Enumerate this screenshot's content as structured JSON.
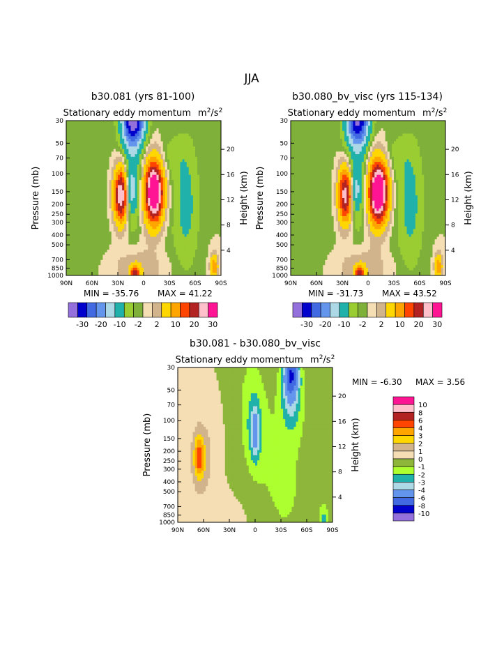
{
  "page_title": "JJA",
  "colors": {
    "jja_palette": [
      "#9370db",
      "#0000cd",
      "#4169e1",
      "#6495ed",
      "#add8e6",
      "#20b2aa",
      "#9acd32",
      "#7fb03a",
      "#f5deb3",
      "#d2b48c",
      "#ffd700",
      "#ffa500",
      "#ff4500",
      "#b22222",
      "#ffc0cb",
      "#ff1493"
    ],
    "diff_palette": [
      "#9370db",
      "#0000cd",
      "#4169e1",
      "#6495ed",
      "#add8e6",
      "#20b2aa",
      "#adff2f",
      "#8db63a",
      "#f5deb3",
      "#d2b48c",
      "#ffd700",
      "#ffa500",
      "#ff4500",
      "#b22222",
      "#ffc0cb",
      "#ff1493"
    ]
  },
  "chart_data": [
    {
      "type": "heatmap",
      "id": "p1",
      "title": "b30.081 (yrs 81-100)",
      "subtitle": "Stationary eddy momentum",
      "units": "m²/s²",
      "xlabel": "",
      "ylabel": "Pressure (mb)",
      "ylabel_right": "Height (km)",
      "x_ticks": [
        "90N",
        "60N",
        "30N",
        "0",
        "30S",
        "60S",
        "90S"
      ],
      "y_ticks": [
        30,
        50,
        70,
        100,
        150,
        200,
        250,
        300,
        400,
        500,
        700,
        850,
        1000
      ],
      "height_ticks": [
        20,
        16,
        12,
        8,
        4
      ],
      "ylim": [
        30,
        1000
      ],
      "min_label": "MIN = -35.76",
      "max_label": "MAX = 41.22",
      "min": -35.76,
      "max": 41.22,
      "colorbar": {
        "labels": [
          "-30",
          "-20",
          "-10",
          "-2",
          "2",
          "10",
          "20",
          "30"
        ],
        "levels": [
          -35,
          -30,
          -25,
          -20,
          -15,
          -10,
          -5,
          -2,
          0,
          2,
          5,
          10,
          15,
          20,
          25,
          30,
          35
        ]
      },
      "features": [
        {
          "lat": 12,
          "p": 30,
          "value": -34,
          "wlat": 9,
          "wlev": 1.6
        },
        {
          "lat": 15,
          "p": 130,
          "value": -11,
          "wlat": 9,
          "wlev": 2.5
        },
        {
          "lat": -12,
          "p": 150,
          "value": 41,
          "wlat": 8,
          "wlev": 2.0
        },
        {
          "lat": 26,
          "p": 160,
          "value": 35,
          "wlat": 6,
          "wlev": 1.8
        },
        {
          "lat": 15,
          "p": 150,
          "value": -8,
          "wlat": 3,
          "wlev": 1.0
        },
        {
          "lat": -50,
          "p": 200,
          "value": -6,
          "wlat": 10,
          "wlev": 4.0
        },
        {
          "lat": -30,
          "p": 70,
          "value": -3,
          "wlat": 14,
          "wlev": 1.5
        },
        {
          "lat": 65,
          "p": 300,
          "value": -1,
          "wlat": 25,
          "wlev": 6.0
        },
        {
          "lat": 5,
          "p": 850,
          "value": 4,
          "wlat": 25,
          "wlev": 1.3
        },
        {
          "lat": -30,
          "p": 500,
          "value": -1,
          "wlat": 15,
          "wlev": 4.0
        },
        {
          "lat": 10,
          "p": 950,
          "value": 20,
          "wlat": 4,
          "wlev": 0.5
        },
        {
          "lat": -82,
          "p": 820,
          "value": 14,
          "wlat": 3,
          "wlev": 0.8
        }
      ]
    },
    {
      "type": "heatmap",
      "id": "p2",
      "title": "b30.080_bv_visc (yrs 115-134)",
      "subtitle": "Stationary eddy momentum",
      "units": "m²/s²",
      "xlabel": "",
      "ylabel": "Pressure (mb)",
      "ylabel_right": "Height (km)",
      "x_ticks": [
        "90N",
        "60N",
        "30N",
        "0",
        "30S",
        "60S",
        "90S"
      ],
      "y_ticks": [
        30,
        50,
        70,
        100,
        150,
        200,
        250,
        300,
        400,
        500,
        700,
        850,
        1000
      ],
      "height_ticks": [
        20,
        16,
        12,
        8,
        4
      ],
      "ylim": [
        30,
        1000
      ],
      "min_label": "MIN = -31.73",
      "max_label": "MAX = 43.52",
      "min": -31.73,
      "max": 43.52,
      "colorbar": {
        "labels": [
          "-30",
          "-20",
          "-10",
          "-2",
          "2",
          "10",
          "20",
          "30"
        ],
        "levels": [
          -35,
          -30,
          -25,
          -20,
          -15,
          -10,
          -5,
          -2,
          0,
          2,
          5,
          10,
          15,
          20,
          25,
          30,
          35
        ]
      },
      "features": [
        {
          "lat": 12,
          "p": 30,
          "value": -31,
          "wlat": 9,
          "wlev": 1.6
        },
        {
          "lat": 15,
          "p": 130,
          "value": -10,
          "wlat": 9,
          "wlev": 2.5
        },
        {
          "lat": -12,
          "p": 150,
          "value": 43,
          "wlat": 8,
          "wlev": 2.0
        },
        {
          "lat": 26,
          "p": 160,
          "value": 32,
          "wlat": 6,
          "wlev": 1.8
        },
        {
          "lat": 15,
          "p": 150,
          "value": -7,
          "wlat": 3,
          "wlev": 1.0
        },
        {
          "lat": -50,
          "p": 200,
          "value": -6,
          "wlat": 10,
          "wlev": 4.0
        },
        {
          "lat": -30,
          "p": 70,
          "value": -3,
          "wlat": 14,
          "wlev": 1.5
        },
        {
          "lat": 65,
          "p": 300,
          "value": -1,
          "wlat": 25,
          "wlev": 6.0
        },
        {
          "lat": 5,
          "p": 850,
          "value": 4,
          "wlat": 25,
          "wlev": 1.3
        },
        {
          "lat": -30,
          "p": 500,
          "value": -1,
          "wlat": 15,
          "wlev": 4.0
        },
        {
          "lat": 10,
          "p": 950,
          "value": 20,
          "wlat": 4,
          "wlev": 0.5
        },
        {
          "lat": -82,
          "p": 820,
          "value": 14,
          "wlat": 3,
          "wlev": 0.8
        }
      ]
    },
    {
      "type": "heatmap",
      "id": "p3",
      "title": "b30.081 - b30.080_bv_visc",
      "subtitle": "Stationary eddy momentum",
      "units": "m²/s²",
      "xlabel": "",
      "ylabel": "Pressure (mb)",
      "ylabel_right": "Height (km)",
      "x_ticks": [
        "90N",
        "60N",
        "30N",
        "0",
        "30S",
        "60S",
        "90S"
      ],
      "y_ticks": [
        30,
        50,
        70,
        100,
        150,
        200,
        250,
        300,
        400,
        500,
        700,
        850,
        1000
      ],
      "height_ticks": [
        20,
        16,
        12,
        8,
        4
      ],
      "ylim": [
        30,
        1000
      ],
      "min_label": "MIN = -6.30",
      "max_label": "MAX = 3.56",
      "min": -6.3,
      "max": 3.56,
      "colorbar": {
        "labels": [
          "10",
          "8",
          "6",
          "4",
          "3",
          "2",
          "1",
          "0",
          "-1",
          "-2",
          "-3",
          "-4",
          "-6",
          "-8",
          "-10"
        ],
        "levels": [
          -12,
          -10,
          -8,
          -6,
          -4,
          -3,
          -2,
          -1,
          0,
          1,
          2,
          3,
          4,
          6,
          8,
          10,
          12
        ]
      },
      "features": [
        {
          "lat": -42,
          "p": 35,
          "value": -6.3,
          "wlat": 6,
          "wlev": 1.2
        },
        {
          "lat": -42,
          "p": 60,
          "value": -3,
          "wlat": 8,
          "wlev": 2.0
        },
        {
          "lat": 0,
          "p": 130,
          "value": -3,
          "wlat": 3,
          "wlev": 1.5
        },
        {
          "lat": 0,
          "p": 140,
          "value": -1.5,
          "wlat": 8,
          "wlev": 2.2
        },
        {
          "lat": 65,
          "p": 230,
          "value": 3.56,
          "wlat": 4,
          "wlev": 1.3
        },
        {
          "lat": 62,
          "p": 230,
          "value": 1.5,
          "wlat": 12,
          "wlev": 3.0
        },
        {
          "lat": -30,
          "p": 400,
          "value": -1.2,
          "wlat": 30,
          "wlev": 8.0
        },
        {
          "lat": 5,
          "p": 60,
          "value": -1.2,
          "wlat": 10,
          "wlev": 3.0
        },
        {
          "lat": 20,
          "p": 1000,
          "value": 0.5,
          "wlat": 30,
          "wlev": 2.0
        },
        {
          "lat": -80,
          "p": 900,
          "value": -2,
          "wlat": 4,
          "wlev": 0.8
        }
      ]
    }
  ]
}
